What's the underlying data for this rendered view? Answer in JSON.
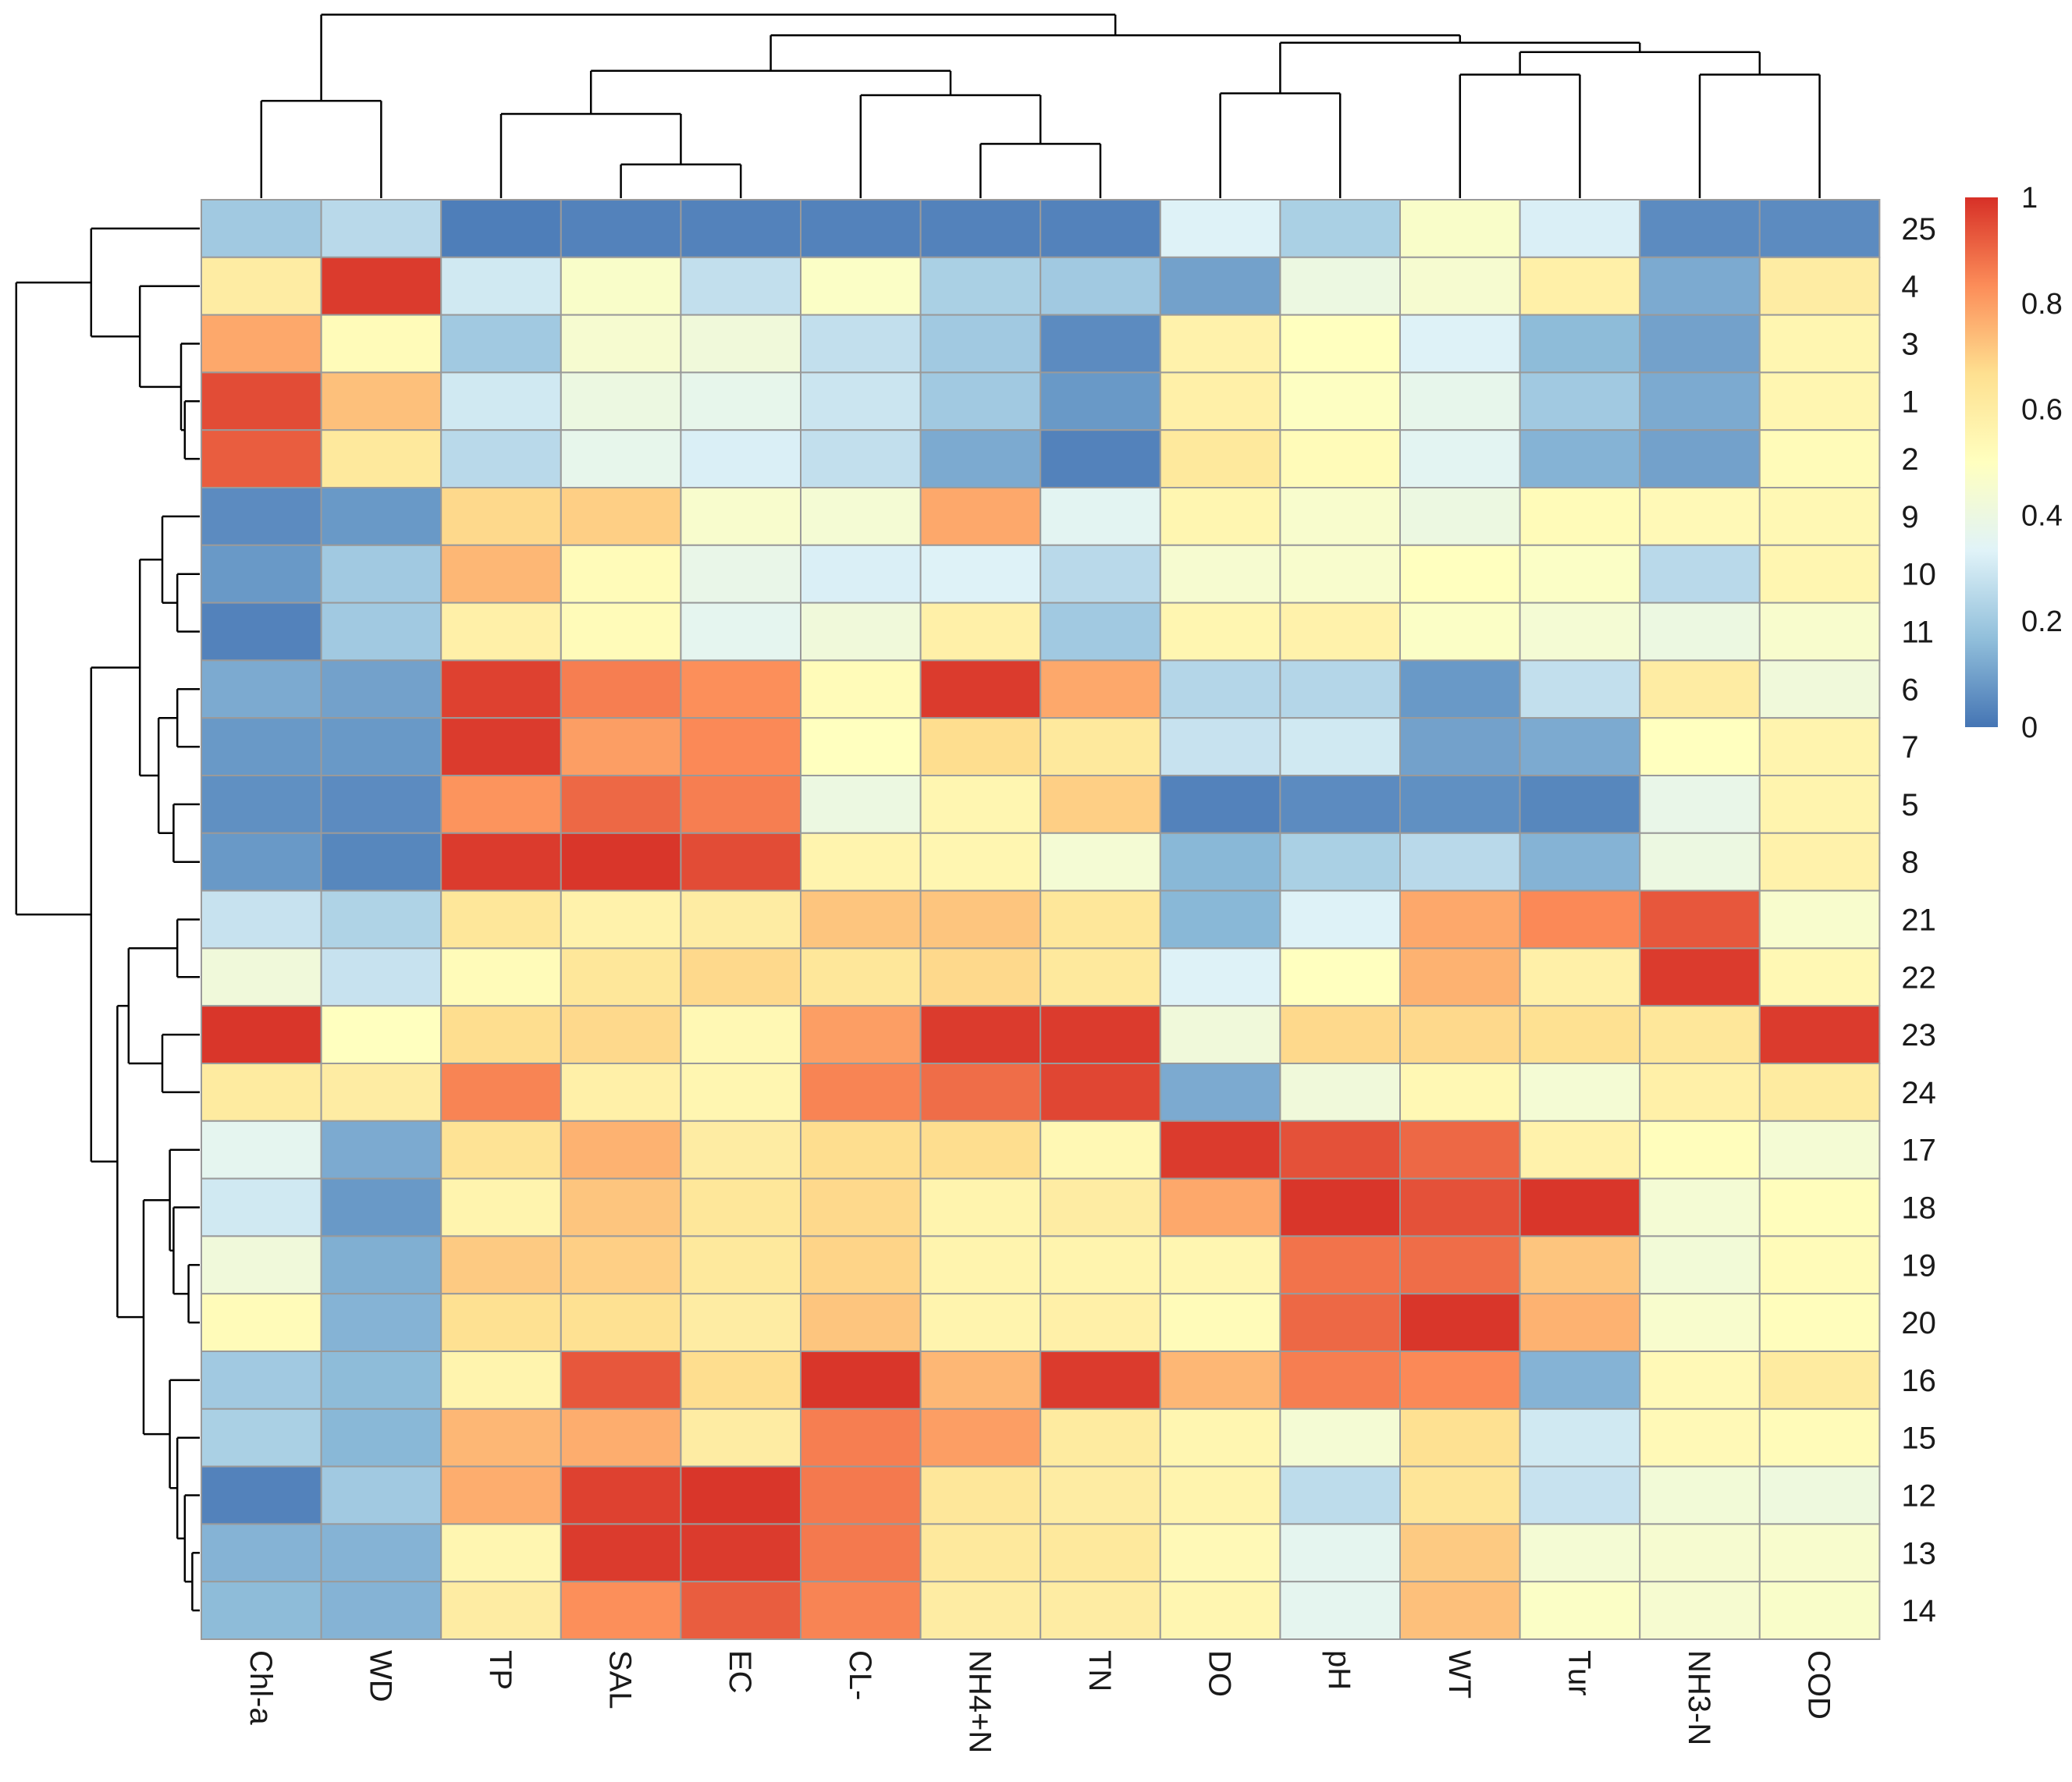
{
  "chart_data": {
    "type": "heatmap",
    "title": "",
    "xlabel": "",
    "ylabel": "",
    "columns": [
      "Chl-a",
      "WD",
      "TP",
      "SAL",
      "EC",
      "CL-",
      "NH4+N",
      "TN",
      "DO",
      "pH",
      "WT",
      "Tur",
      "NH3-N",
      "COD"
    ],
    "rows": [
      "25",
      "4",
      "3",
      "1",
      "2",
      "9",
      "10",
      "11",
      "6",
      "7",
      "5",
      "8",
      "21",
      "22",
      "23",
      "24",
      "17",
      "18",
      "19",
      "20",
      "16",
      "15",
      "12",
      "13",
      "14"
    ],
    "values": [
      [
        0.2,
        0.25,
        0.02,
        0.03,
        0.03,
        0.03,
        0.03,
        0.03,
        0.33,
        0.22,
        0.47,
        0.32,
        0.05,
        0.05
      ],
      [
        0.6,
        0.98,
        0.3,
        0.47,
        0.27,
        0.48,
        0.22,
        0.2,
        0.1,
        0.4,
        0.45,
        0.58,
        0.12,
        0.6
      ],
      [
        0.78,
        0.52,
        0.2,
        0.45,
        0.42,
        0.27,
        0.2,
        0.05,
        0.57,
        0.5,
        0.33,
        0.16,
        0.1,
        0.55
      ],
      [
        0.95,
        0.73,
        0.3,
        0.4,
        0.37,
        0.29,
        0.2,
        0.08,
        0.58,
        0.49,
        0.37,
        0.2,
        0.12,
        0.55
      ],
      [
        0.92,
        0.62,
        0.25,
        0.37,
        0.32,
        0.27,
        0.12,
        0.03,
        0.62,
        0.52,
        0.35,
        0.14,
        0.1,
        0.52
      ],
      [
        0.05,
        0.08,
        0.68,
        0.7,
        0.46,
        0.44,
        0.78,
        0.35,
        0.55,
        0.46,
        0.4,
        0.52,
        0.53,
        0.54
      ],
      [
        0.08,
        0.2,
        0.75,
        0.52,
        0.38,
        0.32,
        0.33,
        0.25,
        0.45,
        0.46,
        0.5,
        0.48,
        0.25,
        0.55
      ],
      [
        0.03,
        0.2,
        0.58,
        0.52,
        0.36,
        0.42,
        0.58,
        0.2,
        0.55,
        0.57,
        0.48,
        0.44,
        0.4,
        0.46
      ],
      [
        0.12,
        0.1,
        0.97,
        0.86,
        0.83,
        0.52,
        0.98,
        0.78,
        0.24,
        0.24,
        0.08,
        0.27,
        0.6,
        0.42
      ],
      [
        0.08,
        0.08,
        0.98,
        0.8,
        0.84,
        0.5,
        0.67,
        0.62,
        0.28,
        0.3,
        0.1,
        0.12,
        0.5,
        0.56
      ],
      [
        0.06,
        0.05,
        0.82,
        0.9,
        0.86,
        0.4,
        0.55,
        0.7,
        0.03,
        0.05,
        0.06,
        0.04,
        0.38,
        0.56
      ],
      [
        0.08,
        0.04,
        0.98,
        0.99,
        0.95,
        0.56,
        0.55,
        0.44,
        0.15,
        0.22,
        0.25,
        0.14,
        0.4,
        0.57
      ],
      [
        0.28,
        0.23,
        0.63,
        0.57,
        0.6,
        0.72,
        0.72,
        0.63,
        0.15,
        0.33,
        0.78,
        0.84,
        0.93,
        0.46
      ],
      [
        0.42,
        0.28,
        0.52,
        0.63,
        0.68,
        0.63,
        0.68,
        0.62,
        0.33,
        0.5,
        0.76,
        0.58,
        0.98,
        0.54
      ],
      [
        0.99,
        0.5,
        0.67,
        0.68,
        0.54,
        0.8,
        0.98,
        0.98,
        0.42,
        0.68,
        0.68,
        0.66,
        0.63,
        0.98
      ],
      [
        0.61,
        0.6,
        0.85,
        0.58,
        0.55,
        0.85,
        0.89,
        0.96,
        0.12,
        0.42,
        0.54,
        0.44,
        0.58,
        0.61
      ],
      [
        0.36,
        0.12,
        0.65,
        0.76,
        0.6,
        0.67,
        0.67,
        0.54,
        0.98,
        0.94,
        0.9,
        0.57,
        0.51,
        0.44
      ],
      [
        0.3,
        0.08,
        0.56,
        0.72,
        0.63,
        0.68,
        0.56,
        0.6,
        0.78,
        0.99,
        0.94,
        0.99,
        0.44,
        0.51
      ],
      [
        0.42,
        0.13,
        0.71,
        0.7,
        0.62,
        0.69,
        0.56,
        0.56,
        0.55,
        0.88,
        0.89,
        0.72,
        0.43,
        0.52
      ],
      [
        0.52,
        0.14,
        0.66,
        0.66,
        0.6,
        0.72,
        0.56,
        0.58,
        0.52,
        0.9,
        0.99,
        0.76,
        0.46,
        0.51
      ],
      [
        0.2,
        0.16,
        0.56,
        0.93,
        0.67,
        0.99,
        0.75,
        0.98,
        0.75,
        0.86,
        0.84,
        0.14,
        0.53,
        0.61
      ],
      [
        0.22,
        0.15,
        0.75,
        0.77,
        0.6,
        0.86,
        0.8,
        0.61,
        0.55,
        0.44,
        0.66,
        0.3,
        0.53,
        0.52
      ],
      [
        0.03,
        0.2,
        0.77,
        0.97,
        0.99,
        0.87,
        0.63,
        0.6,
        0.56,
        0.26,
        0.64,
        0.28,
        0.43,
        0.41
      ],
      [
        0.14,
        0.14,
        0.55,
        0.98,
        0.98,
        0.87,
        0.62,
        0.62,
        0.53,
        0.36,
        0.71,
        0.44,
        0.45,
        0.46
      ],
      [
        0.16,
        0.14,
        0.6,
        0.83,
        0.92,
        0.85,
        0.6,
        0.6,
        0.55,
        0.36,
        0.73,
        0.48,
        0.45,
        0.47
      ]
    ],
    "value_range": [
      0,
      1
    ],
    "colorbar": {
      "ticks": [
        1,
        0.8,
        0.6,
        0.4,
        0.2,
        0
      ],
      "tick_labels": [
        "1",
        "0.8",
        "0.6",
        "0.4",
        "0.2",
        "0"
      ],
      "colors": [
        "#4575b4",
        "#91bfdb",
        "#e0f3f8",
        "#ffffbf",
        "#fee090",
        "#fc8d59",
        "#d73027"
      ]
    },
    "grid": true,
    "legend": "right",
    "column_dendrogram": "top",
    "row_dendrogram": "left"
  }
}
